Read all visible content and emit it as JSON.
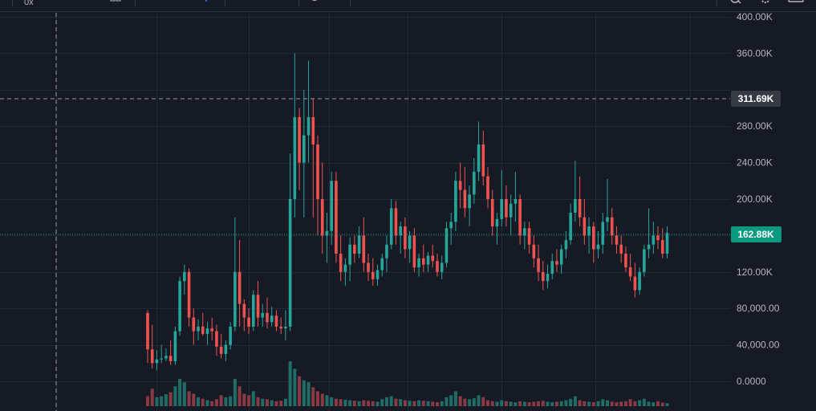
{
  "toolbar": {
    "interval_label": "0x",
    "icons": [
      "layout-icon",
      "indicator-icon",
      "compare-icon",
      "undo-icon",
      "search-icon",
      "settings-icon",
      "fullscreen-icon"
    ]
  },
  "colors": {
    "up": "#26a69a",
    "down": "#ef5350",
    "up_volume": "#1f6d66",
    "down_volume": "#8a3a44",
    "background": "#161a25",
    "grid": "#232836",
    "last_price_tag": "#089981",
    "crosshair_tag": "#363a45"
  },
  "chart_data": {
    "type": "candlestick",
    "y_axis_ticks": [
      "400.00K",
      "360.00K",
      "280.00K",
      "240.00K",
      "200.00K",
      "120.00K",
      "80,000.00",
      "40,000.00",
      "0.0000"
    ],
    "ylim": [
      0,
      400000
    ],
    "crosshair_price": "311.69K",
    "last_price": "162.88K",
    "grid": true,
    "candles": [
      [
        75000,
        78000,
        20000,
        35000
      ],
      [
        35000,
        62000,
        14000,
        20000
      ],
      [
        20000,
        34000,
        12000,
        24000
      ],
      [
        24000,
        40000,
        20000,
        25000
      ],
      [
        25000,
        36000,
        22000,
        28000
      ],
      [
        28000,
        45000,
        18000,
        22000
      ],
      [
        22000,
        60000,
        18000,
        55000
      ],
      [
        55000,
        115000,
        50000,
        110000
      ],
      [
        110000,
        128000,
        95000,
        120000
      ],
      [
        120000,
        124000,
        60000,
        70000
      ],
      [
        70000,
        80000,
        40000,
        55000
      ],
      [
        55000,
        68000,
        45000,
        60000
      ],
      [
        60000,
        75000,
        50000,
        52000
      ],
      [
        52000,
        65000,
        40000,
        58000
      ],
      [
        58000,
        70000,
        45000,
        55000
      ],
      [
        55000,
        62000,
        28000,
        38000
      ],
      [
        38000,
        52000,
        25000,
        30000
      ],
      [
        30000,
        45000,
        22000,
        40000
      ],
      [
        40000,
        65000,
        35000,
        60000
      ],
      [
        60000,
        180000,
        55000,
        120000
      ],
      [
        120000,
        155000,
        60000,
        85000
      ],
      [
        85000,
        90000,
        55000,
        70000
      ],
      [
        70000,
        80000,
        52000,
        60000
      ],
      [
        60000,
        100000,
        55000,
        95000
      ],
      [
        95000,
        110000,
        60000,
        70000
      ],
      [
        70000,
        85000,
        60000,
        75000
      ],
      [
        75000,
        92000,
        58000,
        65000
      ],
      [
        65000,
        82000,
        60000,
        72000
      ],
      [
        72000,
        78000,
        55000,
        60000
      ],
      [
        60000,
        70000,
        52000,
        58000
      ],
      [
        58000,
        78000,
        45000,
        60000
      ],
      [
        60000,
        250000,
        55000,
        200000
      ],
      [
        200000,
        360000,
        180000,
        290000
      ],
      [
        290000,
        300000,
        210000,
        240000
      ],
      [
        240000,
        320000,
        180000,
        270000
      ],
      [
        270000,
        352000,
        240000,
        290000
      ],
      [
        290000,
        310000,
        180000,
        260000
      ],
      [
        260000,
        270000,
        160000,
        200000
      ],
      [
        200000,
        240000,
        140000,
        160000
      ],
      [
        160000,
        185000,
        130000,
        165000
      ],
      [
        165000,
        230000,
        150000,
        220000
      ],
      [
        220000,
        230000,
        130000,
        140000
      ],
      [
        140000,
        160000,
        110000,
        120000
      ],
      [
        120000,
        135000,
        105000,
        128000
      ],
      [
        128000,
        158000,
        110000,
        150000
      ],
      [
        150000,
        160000,
        130000,
        140000
      ],
      [
        140000,
        170000,
        135000,
        160000
      ],
      [
        160000,
        180000,
        120000,
        130000
      ],
      [
        130000,
        140000,
        110000,
        120000
      ],
      [
        120000,
        135000,
        105000,
        112000
      ],
      [
        112000,
        128000,
        105000,
        122000
      ],
      [
        122000,
        140000,
        115000,
        135000
      ],
      [
        135000,
        160000,
        120000,
        150000
      ],
      [
        150000,
        200000,
        145000,
        190000
      ],
      [
        190000,
        198000,
        150000,
        160000
      ],
      [
        160000,
        175000,
        140000,
        170000
      ],
      [
        170000,
        180000,
        135000,
        145000
      ],
      [
        145000,
        165000,
        130000,
        160000
      ],
      [
        160000,
        168000,
        120000,
        125000
      ],
      [
        125000,
        140000,
        115000,
        135000
      ],
      [
        135000,
        150000,
        120000,
        128000
      ],
      [
        128000,
        142000,
        120000,
        138000
      ],
      [
        138000,
        150000,
        125000,
        132000
      ],
      [
        132000,
        140000,
        115000,
        120000
      ],
      [
        120000,
        138000,
        112000,
        130000
      ],
      [
        130000,
        175000,
        125000,
        168000
      ],
      [
        168000,
        185000,
        150000,
        175000
      ],
      [
        175000,
        230000,
        165000,
        220000
      ],
      [
        220000,
        240000,
        190000,
        210000
      ],
      [
        210000,
        235000,
        180000,
        190000
      ],
      [
        190000,
        215000,
        170000,
        205000
      ],
      [
        205000,
        245000,
        195000,
        230000
      ],
      [
        230000,
        285000,
        220000,
        260000
      ],
      [
        260000,
        275000,
        215000,
        225000
      ],
      [
        225000,
        235000,
        190000,
        200000
      ],
      [
        200000,
        210000,
        160000,
        170000
      ],
      [
        170000,
        185000,
        150000,
        178000
      ],
      [
        178000,
        232000,
        170000,
        200000
      ],
      [
        200000,
        215000,
        170000,
        180000
      ],
      [
        180000,
        205000,
        160000,
        195000
      ],
      [
        195000,
        230000,
        175000,
        200000
      ],
      [
        200000,
        205000,
        150000,
        160000
      ],
      [
        160000,
        175000,
        145000,
        168000
      ],
      [
        168000,
        175000,
        140000,
        150000
      ],
      [
        150000,
        160000,
        125000,
        135000
      ],
      [
        135000,
        150000,
        110000,
        120000
      ],
      [
        120000,
        132000,
        100000,
        110000
      ],
      [
        110000,
        128000,
        102000,
        118000
      ],
      [
        118000,
        140000,
        112000,
        132000
      ],
      [
        132000,
        145000,
        120000,
        128000
      ],
      [
        128000,
        150000,
        118000,
        145000
      ],
      [
        145000,
        165000,
        135000,
        155000
      ],
      [
        155000,
        195000,
        150000,
        185000
      ],
      [
        185000,
        242000,
        175000,
        200000
      ],
      [
        200000,
        225000,
        170000,
        180000
      ],
      [
        180000,
        200000,
        150000,
        160000
      ],
      [
        160000,
        180000,
        140000,
        170000
      ],
      [
        170000,
        175000,
        130000,
        145000
      ],
      [
        145000,
        165000,
        135000,
        150000
      ],
      [
        150000,
        185000,
        140000,
        175000
      ],
      [
        175000,
        222000,
        165000,
        180000
      ],
      [
        180000,
        190000,
        150000,
        160000
      ],
      [
        160000,
        170000,
        140000,
        150000
      ],
      [
        150000,
        160000,
        130000,
        140000
      ],
      [
        140000,
        148000,
        120000,
        125000
      ],
      [
        125000,
        140000,
        110000,
        115000
      ],
      [
        115000,
        130000,
        92000,
        100000
      ],
      [
        100000,
        125000,
        95000,
        120000
      ],
      [
        120000,
        150000,
        115000,
        145000
      ],
      [
        145000,
        190000,
        135000,
        150000
      ],
      [
        150000,
        175000,
        140000,
        160000
      ],
      [
        160000,
        170000,
        145000,
        155000
      ],
      [
        155000,
        168000,
        135000,
        140000
      ],
      [
        140000,
        170000,
        135000,
        162880
      ]
    ],
    "volume_max": 100,
    "volumes": [
      20,
      35,
      18,
      20,
      24,
      28,
      40,
      55,
      48,
      30,
      25,
      18,
      15,
      12,
      10,
      14,
      22,
      18,
      20,
      55,
      40,
      25,
      22,
      30,
      18,
      15,
      14,
      12,
      10,
      11,
      15,
      90,
      75,
      60,
      52,
      48,
      38,
      30,
      25,
      22,
      18,
      15,
      14,
      13,
      12,
      11,
      10,
      12,
      11,
      10,
      9,
      14,
      18,
      20,
      15,
      14,
      12,
      11,
      10,
      12,
      11,
      10,
      9,
      8,
      10,
      18,
      22,
      30,
      20,
      15,
      14,
      16,
      22,
      18,
      12,
      10,
      9,
      12,
      10,
      9,
      8,
      10,
      9,
      8,
      9,
      10,
      11,
      9,
      8,
      9,
      10,
      12,
      15,
      20,
      12,
      10,
      9,
      8,
      10,
      14,
      12,
      9,
      8,
      9,
      10,
      14,
      10,
      12,
      15,
      9,
      8,
      10,
      7,
      6
    ]
  }
}
